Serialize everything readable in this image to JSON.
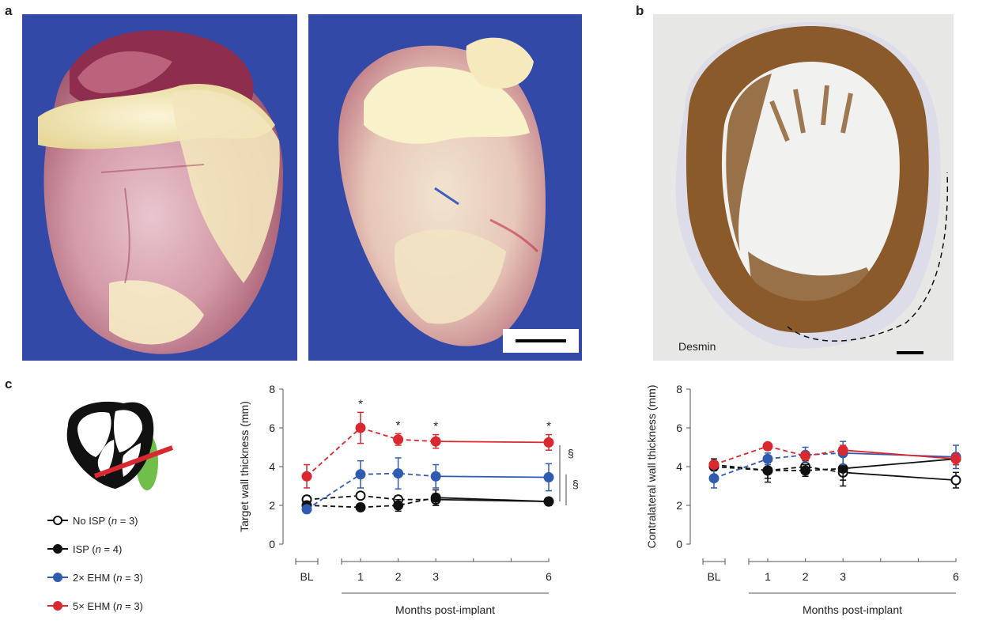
{
  "panels": {
    "a": "a",
    "b": "b",
    "c": "c"
  },
  "stain_label": "Desmin",
  "legend": [
    {
      "name": "No ISP",
      "n_text": "(",
      "n_var": "n",
      "n_val": " = 3)",
      "color": "#111111",
      "fill": "#ffffff"
    },
    {
      "name": "ISP",
      "n_text": "(",
      "n_var": "n",
      "n_val": " = 4)",
      "color": "#111111",
      "fill": "#111111"
    },
    {
      "name": "2× EHM",
      "n_text": "(",
      "n_var": "n",
      "n_val": " = 3)",
      "color": "#2f5cb0",
      "fill": "#2f5cb0"
    },
    {
      "name": "5× EHM",
      "n_text": "(",
      "n_var": "n",
      "n_val": " = 3)",
      "color": "#d9282f",
      "fill": "#d9282f"
    }
  ],
  "chart_data": [
    {
      "type": "line",
      "ylabel": "Target wall thickness (mm)",
      "xlabel": "Months post-implant",
      "categories": [
        "BL",
        "1",
        "2",
        "3",
        "6"
      ],
      "ylim": [
        0,
        8
      ],
      "yticks": [
        "0",
        "2",
        "4",
        "6",
        "8"
      ],
      "significance_markers": [
        "*",
        "*",
        "*",
        "*"
      ],
      "section_markers": [
        "§",
        "§"
      ],
      "series": [
        {
          "name": "No ISP",
          "values": [
            2.3,
            2.5,
            2.3,
            2.3,
            2.2
          ],
          "err": [
            0.2,
            0.15,
            0.2,
            0.3,
            0.2
          ]
        },
        {
          "name": "ISP",
          "values": [
            2.0,
            1.9,
            2.0,
            2.4,
            2.2
          ],
          "err": [
            0.2,
            0.15,
            0.3,
            0.4,
            0.2
          ]
        },
        {
          "name": "2× EHM",
          "values": [
            1.8,
            3.6,
            3.65,
            3.5,
            3.45
          ],
          "err": [
            0.2,
            0.7,
            0.8,
            0.6,
            0.7
          ]
        },
        {
          "name": "5× EHM",
          "values": [
            3.5,
            6.0,
            5.4,
            5.3,
            5.25
          ],
          "err": [
            0.6,
            0.8,
            0.3,
            0.35,
            0.4
          ]
        }
      ]
    },
    {
      "type": "line",
      "ylabel": "Contralateral wall thickness (mm)",
      "xlabel": "Months post-implant",
      "categories": [
        "BL",
        "1",
        "2",
        "3",
        "6"
      ],
      "ylim": [
        0,
        8
      ],
      "yticks": [
        "0",
        "2",
        "4",
        "6",
        "8"
      ],
      "series": [
        {
          "name": "No ISP",
          "values": [
            4.1,
            3.8,
            4.0,
            3.7,
            3.3
          ],
          "err": [
            0.3,
            0.4,
            0.3,
            0.4,
            0.4
          ]
        },
        {
          "name": "ISP",
          "values": [
            4.0,
            3.8,
            3.8,
            3.9,
            4.4
          ],
          "err": [
            0.2,
            0.6,
            0.3,
            0.9,
            0.3
          ]
        },
        {
          "name": "2× EHM",
          "values": [
            3.4,
            4.4,
            4.6,
            4.7,
            4.5
          ],
          "err": [
            0.5,
            0.3,
            0.4,
            0.6,
            0.6
          ]
        },
        {
          "name": "5× EHM",
          "values": [
            4.1,
            5.05,
            4.55,
            4.85,
            4.4
          ],
          "err": [
            0.2,
            0.15,
            0.2,
            0.25,
            0.3
          ]
        }
      ]
    }
  ]
}
